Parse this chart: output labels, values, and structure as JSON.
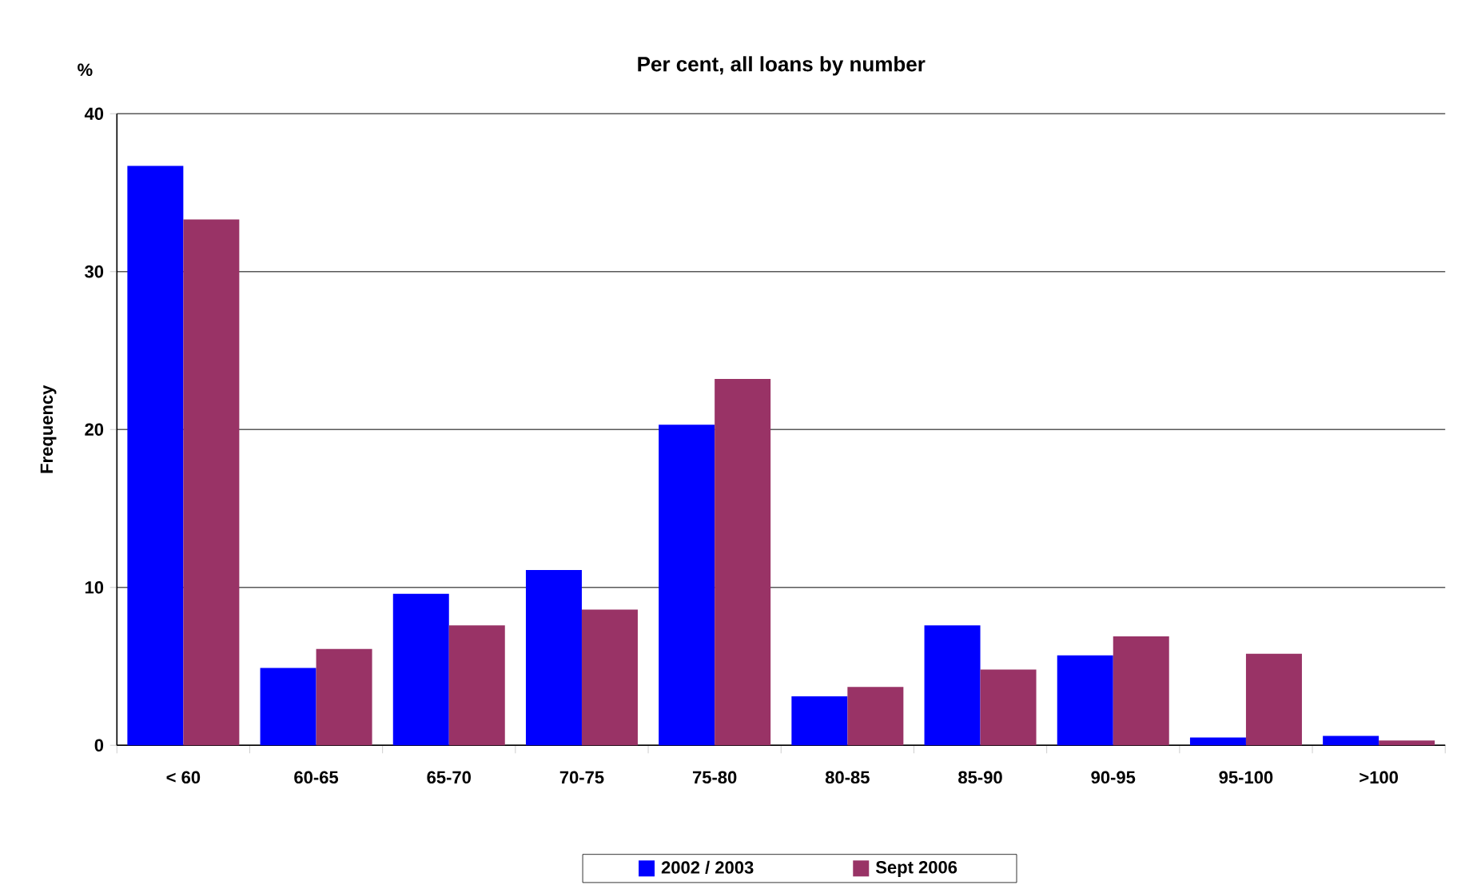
{
  "chart_data": {
    "type": "bar",
    "title": "Per cent, all loans by number",
    "ylabel": "Frequency",
    "annotations": [
      "%"
    ],
    "categories": [
      "< 60",
      "60-65",
      "65-70",
      "70-75",
      "75-80",
      "80-85",
      "85-90",
      "90-95",
      "95-100",
      ">100"
    ],
    "series": [
      {
        "name": "2002 / 2003",
        "color": "#0000ff",
        "values": [
          36.7,
          4.9,
          9.6,
          11.1,
          20.3,
          3.1,
          7.6,
          5.7,
          0.5,
          0.6
        ]
      },
      {
        "name": "Sept 2006",
        "color": "#993366",
        "values": [
          33.3,
          6.1,
          7.6,
          8.6,
          23.2,
          3.7,
          4.8,
          6.9,
          5.8,
          0.3
        ]
      }
    ],
    "ylim": [
      0,
      40
    ],
    "yticks": [
      0,
      10,
      20,
      30,
      40
    ],
    "grid": "y",
    "legend": "bottom"
  }
}
